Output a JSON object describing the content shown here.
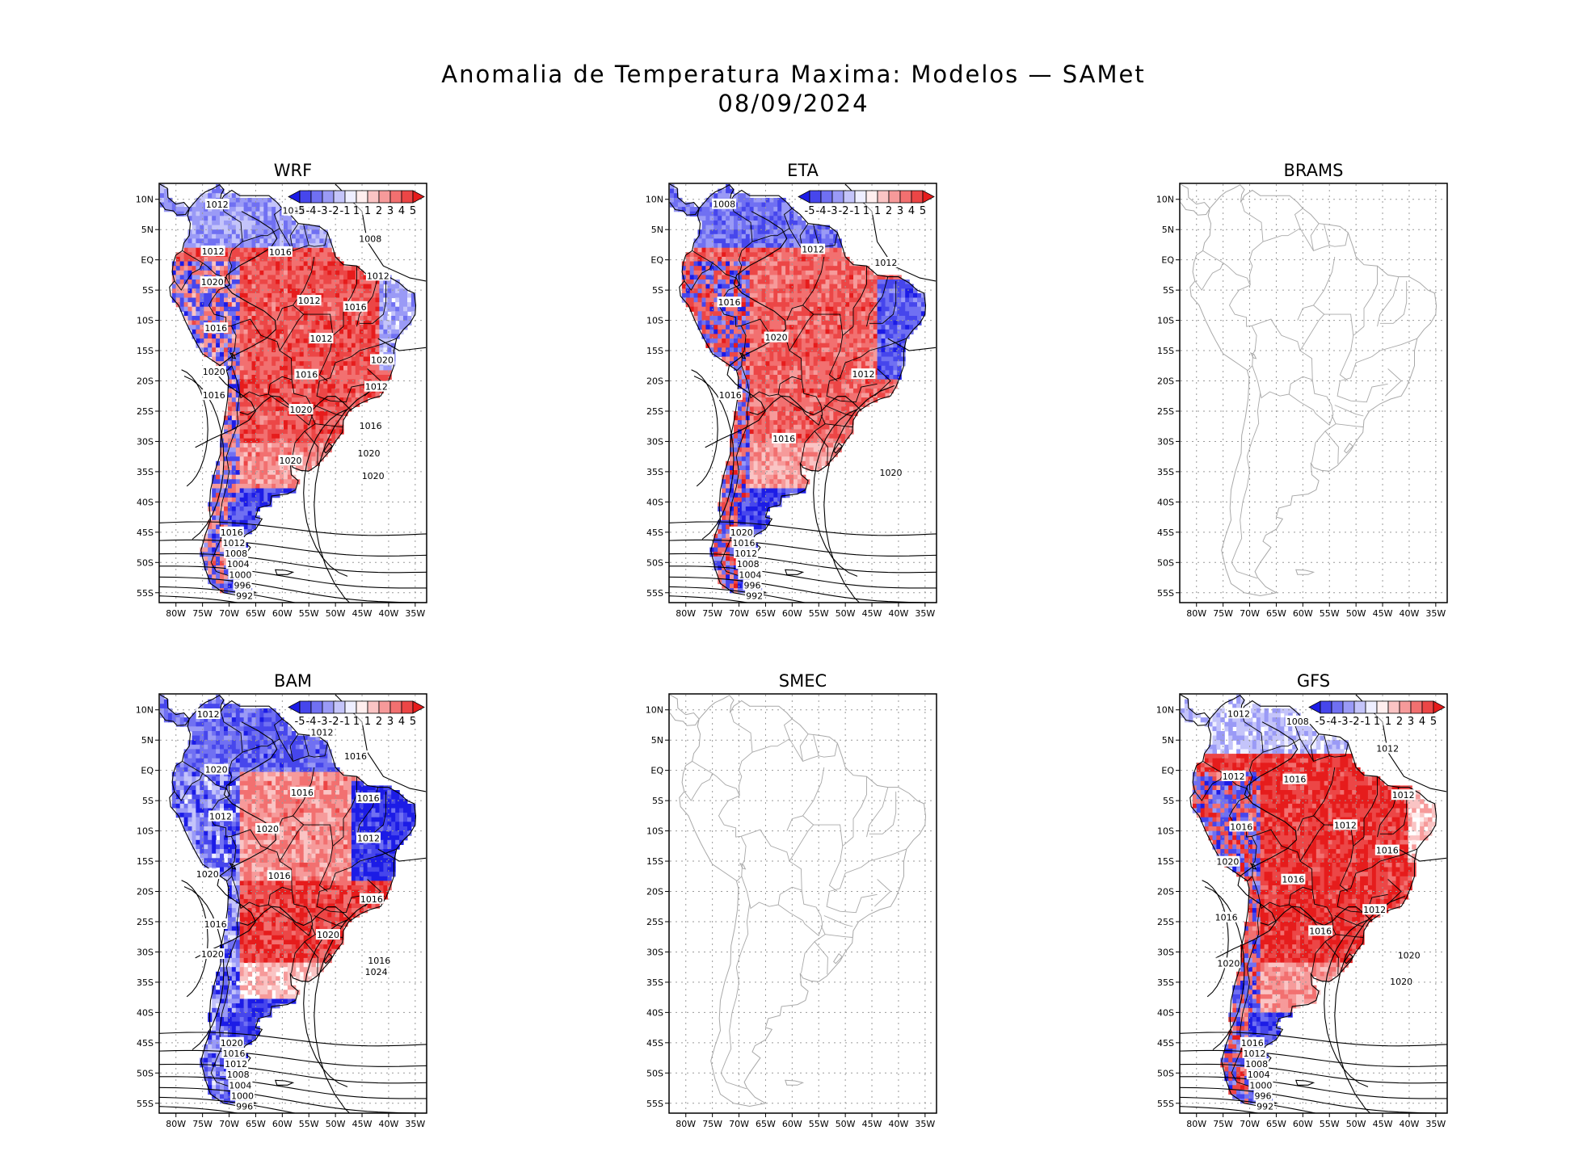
{
  "title": {
    "line1": "Anomalia de Temperatura Maxima: Modelos — SAMet",
    "line2": "08/09/2024"
  },
  "lat_ticks": [
    "10N",
    "5N",
    "EQ",
    "5S",
    "10S",
    "15S",
    "20S",
    "25S",
    "30S",
    "35S",
    "40S",
    "45S",
    "50S",
    "55S"
  ],
  "lon_ticks": [
    "80W",
    "75W",
    "70W",
    "65W",
    "60W",
    "55W",
    "50W",
    "45W",
    "40W",
    "35W"
  ],
  "colorbar_labels": [
    "-5",
    "-4",
    "-3",
    "-2",
    "-1",
    "1",
    "1",
    "2",
    "3",
    "4",
    "5"
  ],
  "colorbar_colors": [
    "#1c1ce6",
    "#4646ec",
    "#7070f2",
    "#9a9af6",
    "#c4c4fa",
    "#eeeeff",
    "#ffeeee",
    "#fac4c4",
    "#f69a9a",
    "#f27070",
    "#ec4646",
    "#e61c1c"
  ],
  "panels": [
    {
      "name": "WRF",
      "has_data": true,
      "pattern": "warm_north",
      "labels": [
        "1012",
        "1012",
        "1008",
        "1012",
        "1016",
        "1012",
        "1020",
        "1012",
        "1016",
        "1016",
        "1012",
        "1020",
        "1020",
        "1016",
        "1012",
        "1016",
        "1020",
        "1016",
        "1020",
        "1020",
        "1020",
        "1016",
        "1012",
        "1008",
        "1004",
        "1000",
        "996",
        "992"
      ]
    },
    {
      "name": "ETA",
      "has_data": true,
      "pattern": "cool_northeast",
      "labels": [
        "1008",
        "1012",
        "1012",
        "1016",
        "1020",
        "1012",
        "1016",
        "1016",
        "1020",
        "1020",
        "1016",
        "1012",
        "1008",
        "1004",
        "996",
        "992"
      ]
    },
    {
      "name": "BRAMS",
      "has_data": false,
      "pattern": "none",
      "labels": []
    },
    {
      "name": "BAM",
      "has_data": true,
      "pattern": "cool_east",
      "labels": [
        "1012",
        "1012",
        "1016",
        "1020",
        "1016",
        "1016",
        "1012",
        "1020",
        "1012",
        "1020",
        "1016",
        "1016",
        "1016",
        "1020",
        "1016",
        "1020",
        "1024",
        "1020",
        "1016",
        "1012",
        "1008",
        "1004",
        "1000",
        "996"
      ]
    },
    {
      "name": "SMEC",
      "has_data": false,
      "pattern": "none",
      "labels": []
    },
    {
      "name": "GFS",
      "has_data": true,
      "pattern": "warm_all",
      "labels": [
        "1012",
        "1008",
        "1012",
        "1012",
        "1016",
        "1012",
        "1016",
        "1012",
        "1016",
        "1020",
        "1016",
        "1012",
        "1016",
        "1016",
        "1020",
        "1020",
        "1020",
        "1016",
        "1012",
        "1008",
        "1004",
        "1000",
        "996",
        "992"
      ]
    }
  ]
}
